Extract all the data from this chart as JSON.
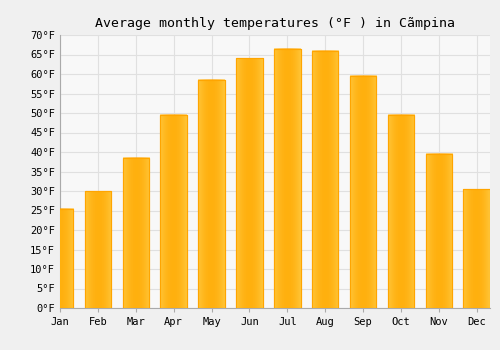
{
  "title": "Average monthly temperatures (°F ) in Cãmpina",
  "months": [
    "Jan",
    "Feb",
    "Mar",
    "Apr",
    "May",
    "Jun",
    "Jul",
    "Aug",
    "Sep",
    "Oct",
    "Nov",
    "Dec"
  ],
  "values": [
    25.5,
    30.0,
    38.5,
    49.5,
    58.5,
    64.0,
    66.5,
    66.0,
    59.5,
    49.5,
    39.5,
    30.5
  ],
  "bar_color_face": "#FFC125",
  "bar_color_edge": "#FFA500",
  "bar_color_left": "#FFB000",
  "bar_color_center": "#FFD966",
  "ylim": [
    0,
    70
  ],
  "ytick_step": 5,
  "background_color": "#f0f0f0",
  "plot_bg_color": "#f8f8f8",
  "grid_color": "#e0e0e0",
  "title_fontsize": 9.5,
  "tick_label_fontsize": 7.5
}
